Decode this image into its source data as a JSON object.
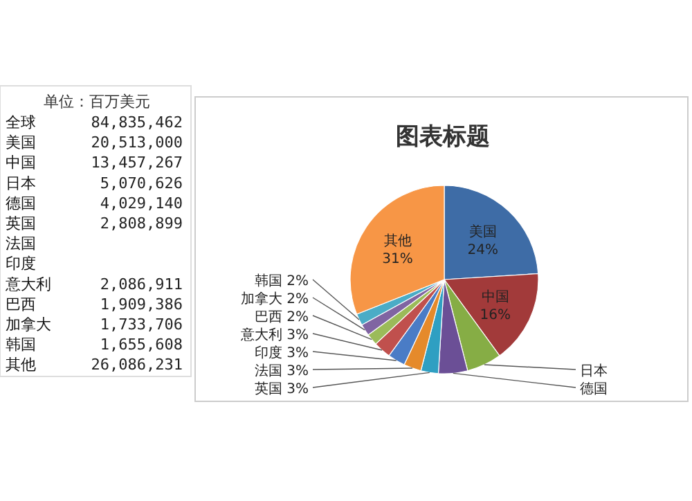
{
  "chart_data": [
    {
      "type": "other",
      "title": "单位：百万美元",
      "categories": [
        "全球",
        "美国",
        "中国",
        "日本",
        "德国",
        "英国",
        "法国",
        "印度",
        "意大利",
        "巴西",
        "加拿大",
        "韩国",
        "其他"
      ],
      "value_labels": [
        "84,835,462",
        "20,513,000",
        "13,457,267",
        "5,070,626",
        "4,029,140",
        "2,808,899",
        null,
        null,
        "2,086,911",
        "1,909,386",
        "1,733,706",
        "1,655,608",
        "26,086,231"
      ]
    },
    {
      "type": "pie",
      "title": "图表标题",
      "categories": [
        "美国",
        "中国",
        "日本",
        "德国",
        "英国",
        "法国",
        "印度",
        "意大利",
        "巴西",
        "加拿大",
        "韩国",
        "其他"
      ],
      "values": [
        24,
        16,
        6,
        5,
        3,
        3,
        3,
        3,
        2,
        2,
        2,
        31
      ],
      "colors": [
        "#3e6ca6",
        "#a23a3a",
        "#86ad45",
        "#6b4f96",
        "#2f9fc2",
        "#e58a2b",
        "#4a7cc6",
        "#c0504d",
        "#9bbb59",
        "#8064a2",
        "#4bacc6",
        "#f79646"
      ],
      "value_labels": [
        "24%",
        "16%",
        null,
        null,
        "3%",
        "3%",
        "3%",
        "3%",
        "2%",
        "2%",
        "2%",
        "31%"
      ]
    }
  ]
}
